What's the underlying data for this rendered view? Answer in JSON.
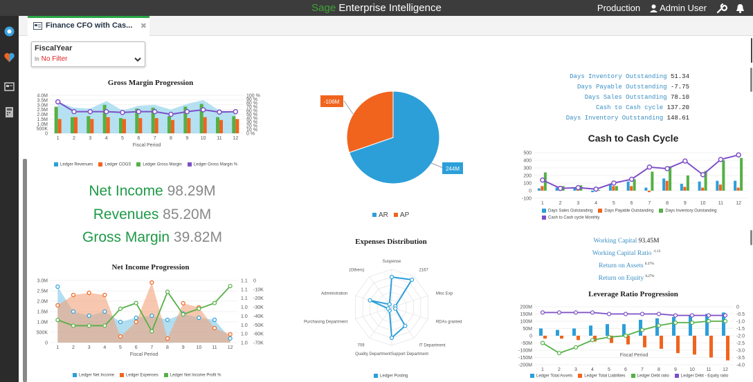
{
  "topbar": {
    "brand_sage": "Sage",
    "brand_rest": " Enterprise Intelligence",
    "environment": "Production",
    "user": "Admin User"
  },
  "tab": {
    "title": "Finance CFO with Cas...",
    "close": "✖"
  },
  "filter": {
    "title": "FiscalYear",
    "operator": "In",
    "value": "No Filter"
  },
  "colors": {
    "blue": "#2c9fd9",
    "orange": "#f0641e",
    "green": "#55b046",
    "purple": "#7d4fc7",
    "brand_green": "#3fa535"
  },
  "icons": [
    "user-icon",
    "wrench-icon",
    "bell-icon",
    "logo-icon",
    "heart-icon",
    "dashboard-icon",
    "calculator-icon",
    "chevron-down-icon",
    "dashboard-tab-icon"
  ],
  "kpis": [
    {
      "label": "Net Income",
      "value": "98.29M"
    },
    {
      "label": "Revenues",
      "value": "85.20M"
    },
    {
      "label": "Gross Margin",
      "value": "39.82M"
    }
  ],
  "metrics_top": [
    {
      "label": "Days Inventory Outstanding",
      "value": "51.34"
    },
    {
      "label": "Days Payable Outstanding",
      "value": "-7.75"
    },
    {
      "label": "Days Sales Outstanding",
      "value": "78.10"
    },
    {
      "label": "Cash to Cash cycle",
      "value": "137.20"
    },
    {
      "label": "Days Inventory Outstanding",
      "value": "148.61"
    }
  ],
  "metrics_mid": [
    {
      "label": "Working Capital",
      "value": "93.45M",
      "small": false
    },
    {
      "label": "Working Capital Ratio",
      "value": "-1.13",
      "small": true
    },
    {
      "label": "Return on Assets",
      "value": "0.37%",
      "small": true
    },
    {
      "label": "Return on Equity",
      "value": "0.27%",
      "small": true
    }
  ],
  "chart_data": [
    {
      "id": "gross-margin",
      "type": "bar",
      "title": "Gross Margin Progression",
      "xlabel": "Fiscal Period",
      "categories": [
        "1",
        "2",
        "3",
        "4",
        "5",
        "6",
        "7",
        "8",
        "9",
        "10",
        "11",
        "12"
      ],
      "y_ticks": [
        "4.0M",
        "3.5M",
        "3.0M",
        "2.5M",
        "2.0M",
        "1.5M",
        "1.0M",
        "500K",
        "0"
      ],
      "y2_ticks": [
        "100 %",
        "90 %",
        "80 %",
        "70 %",
        "60 %",
        "50 %",
        "40 %",
        "30 %",
        "20 %",
        "10 %",
        "0 %"
      ],
      "ylim": [
        0,
        4000000
      ],
      "series": [
        {
          "name": "Ledger Revenues",
          "kind": "area",
          "values": [
            3300000,
            2700000,
            2600000,
            3400000,
            2400000,
            2900000,
            3000000,
            2500000,
            3100000,
            3500000,
            2400000,
            2300000
          ]
        },
        {
          "name": "Ledger COGS",
          "kind": "bar",
          "values": [
            1500000,
            1700000,
            1500000,
            1700000,
            1500000,
            1600000,
            1600000,
            1400000,
            1600000,
            1700000,
            1400000,
            1500000
          ]
        },
        {
          "name": "Ledger Gross Margin",
          "kind": "bar",
          "values": [
            2800000,
            1700000,
            1800000,
            3000000,
            1600000,
            2600000,
            2700000,
            1800000,
            2800000,
            3100000,
            1700000,
            1800000
          ]
        },
        {
          "name": "Ledger Gross Margin %",
          "kind": "line",
          "axis": "y2",
          "values": [
            83,
            57,
            57,
            57,
            55,
            57,
            57,
            50,
            57,
            62,
            56,
            57
          ]
        }
      ]
    },
    {
      "id": "ar-ap",
      "type": "pie",
      "slices": [
        {
          "name": "AR",
          "label": "244M",
          "value": 244
        },
        {
          "name": "AP",
          "label": "-106M",
          "value": 106
        }
      ]
    },
    {
      "id": "cash-cycle",
      "type": "bar",
      "title": "Cash to Cash Cycle",
      "categories": [
        "1",
        "2",
        "3",
        "4",
        "5",
        "6",
        "7",
        "8",
        "9",
        "10",
        "11",
        "12"
      ],
      "y_ticks": [
        "500",
        "400",
        "300",
        "200",
        "100",
        "0",
        "-100"
      ],
      "ylim": [
        -100,
        500
      ],
      "series": [
        {
          "name": "Days Sales Outstanding",
          "kind": "bar",
          "values": [
            30,
            40,
            40,
            -20,
            80,
            120,
            40,
            160,
            90,
            120,
            130,
            130
          ]
        },
        {
          "name": "Days Payable Outstanding",
          "kind": "bar",
          "values": [
            60,
            60,
            40,
            30,
            60,
            60,
            -20,
            130,
            50,
            40,
            80,
            40
          ]
        },
        {
          "name": "Days Inventory Outstanding",
          "kind": "bar",
          "values": [
            240,
            60,
            70,
            10,
            60,
            150,
            250,
            320,
            200,
            260,
            400,
            430
          ]
        },
        {
          "name": "Cash to Cash cycle Monthly",
          "kind": "line",
          "values": [
            140,
            30,
            40,
            20,
            100,
            150,
            310,
            290,
            390,
            210,
            410,
            470
          ]
        }
      ]
    },
    {
      "id": "net-income",
      "type": "area",
      "title": "Net Income Progression",
      "xlabel": "Fiscal Period",
      "categories": [
        "1",
        "2",
        "3",
        "4",
        "5",
        "6",
        "7",
        "8",
        "9",
        "10",
        "11",
        "12"
      ],
      "y_ticks": [
        "3.0M",
        "2.5M",
        "2.0M",
        "1.5M",
        "1.0M",
        "500K",
        "0"
      ],
      "y2_ticks": [
        "1.1",
        "1.1",
        "1.1",
        "1.0",
        "1.0",
        "1.0",
        "1.0",
        "1.0"
      ],
      "y3_ticks": [
        "0",
        "-10K",
        "-20K",
        "-30K",
        "-40K",
        "-50K",
        "-60K",
        "-70K"
      ],
      "ylim": [
        0,
        3000000
      ],
      "series": [
        {
          "name": "Ledger Net Income",
          "kind": "area",
          "values": [
            2700000,
            1500000,
            1300000,
            1500000,
            1000000,
            1200000,
            1300000,
            1100000,
            1400000,
            1200000,
            1100000,
            200000
          ]
        },
        {
          "name": "Ledger Expenses",
          "kind": "area",
          "values": [
            1800000,
            2300000,
            2400000,
            2300000,
            300000,
            1000000,
            2900000,
            200000,
            1900000,
            1700000,
            700000,
            400000
          ]
        },
        {
          "name": "Ledger Net Income Profit %",
          "kind": "line",
          "values": [
            1.04,
            1.03,
            1.03,
            1.03,
            1.06,
            1.07,
            1.02,
            1.09,
            1.05,
            1.06,
            1.07,
            1.1
          ]
        }
      ]
    },
    {
      "id": "expenses",
      "type": "radar",
      "title": "Expenses Distribution",
      "axes": [
        "Suspense",
        "2167",
        "Misc Exp",
        "RDAs granted",
        "IT Department",
        "Quality DepartmentSupport Department",
        "709",
        "Purchasing Department",
        "Administration",
        "(Others)"
      ],
      "series": [
        {
          "name": "Ledger Posting",
          "values": [
            0.8,
            0.9,
            0.1,
            0.1,
            0.6,
            0.8,
            0.1,
            0.1,
            0.6,
            0.1
          ]
        }
      ]
    },
    {
      "id": "leverage",
      "type": "bar",
      "title": "Leverage Ratio Progression",
      "xlabel": "Fiscal Period",
      "categories": [
        "1",
        "2",
        "3",
        "4",
        "5",
        "6",
        "7",
        "8",
        "9",
        "10",
        "11",
        "12"
      ],
      "y_ticks": [
        "200M",
        "150M",
        "100M",
        "50M",
        "0",
        "-50M",
        "-100M",
        "-150M",
        "-200M"
      ],
      "y2_ticks": [
        "0",
        "-0.5",
        "-1.0",
        "-1.5",
        "-2.0",
        "-2.5",
        "-3.0",
        "-3.5",
        "-4.0"
      ],
      "ylim": [
        -200,
        200
      ],
      "series": [
        {
          "name": "Ledger Total Assets",
          "kind": "bar",
          "values": [
            50,
            40,
            50,
            70,
            80,
            80,
            110,
            120,
            130,
            140,
            150,
            160
          ]
        },
        {
          "name": "Ledger Total Liabilities",
          "kind": "bar",
          "values": [
            -20,
            -20,
            -30,
            -40,
            -50,
            -60,
            -80,
            -90,
            -120,
            -130,
            -150,
            -170
          ]
        },
        {
          "name": "Ledger Debt ratio",
          "kind": "line",
          "values": [
            -2.5,
            -3.2,
            -2.8,
            -2.3,
            -2.1,
            -2.0,
            -1.6,
            -1.3,
            -1.1,
            -1.1,
            -1.0,
            -1.0
          ]
        },
        {
          "name": "Ledger Debt - Equity ratio",
          "kind": "line",
          "values": [
            -0.4,
            -0.4,
            -0.4,
            -0.4,
            -0.5,
            -0.5,
            -0.5,
            -0.5,
            -0.6,
            -0.6,
            -0.6,
            -0.6
          ]
        }
      ]
    }
  ]
}
